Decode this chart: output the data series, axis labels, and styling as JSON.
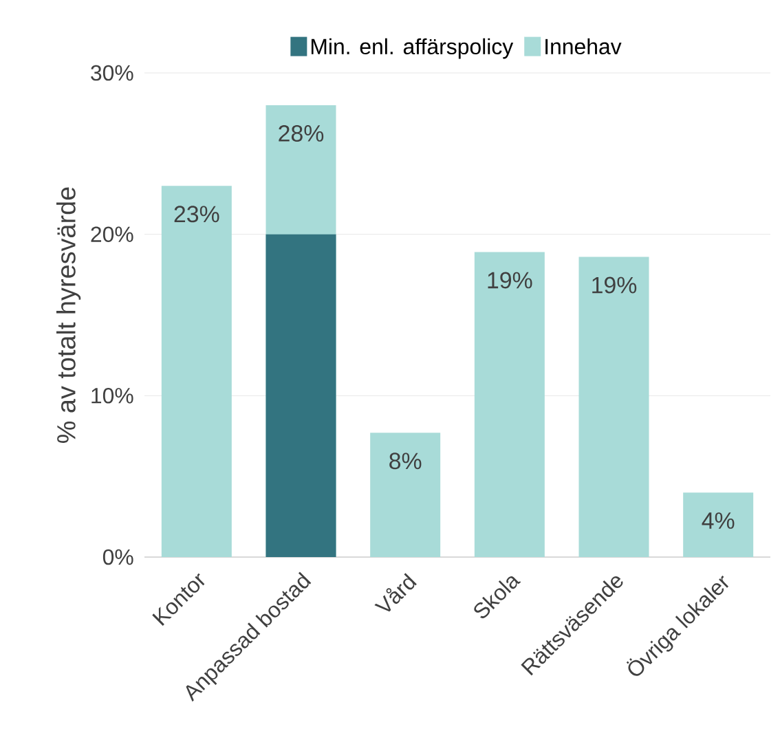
{
  "chart_data": {
    "type": "bar",
    "ylabel": "% av totalt hyresvärde",
    "categories": [
      "Kontor",
      "Anpassad bostad",
      "Vård",
      "Skola",
      "Rättsväsende",
      "Övriga lokaler"
    ],
    "series": [
      {
        "name": "Min. enl. affärspolicy",
        "color": "#337480",
        "values": [
          null,
          20,
          null,
          null,
          null,
          null
        ]
      },
      {
        "name": "Innehav",
        "color": "#a8dbd8",
        "values": [
          23,
          28,
          7.7,
          18.9,
          18.6,
          4
        ],
        "value_labels": [
          "23%",
          "28%",
          "8%",
          "19%",
          "19%",
          "4%"
        ]
      }
    ],
    "ylim": [
      0,
      30
    ],
    "yticks": [
      {
        "value": 0,
        "label": "0%"
      },
      {
        "value": 10,
        "label": "10%"
      },
      {
        "value": 20,
        "label": "20%"
      },
      {
        "value": 30,
        "label": "30%"
      }
    ],
    "grid": "y",
    "legend": "top"
  }
}
